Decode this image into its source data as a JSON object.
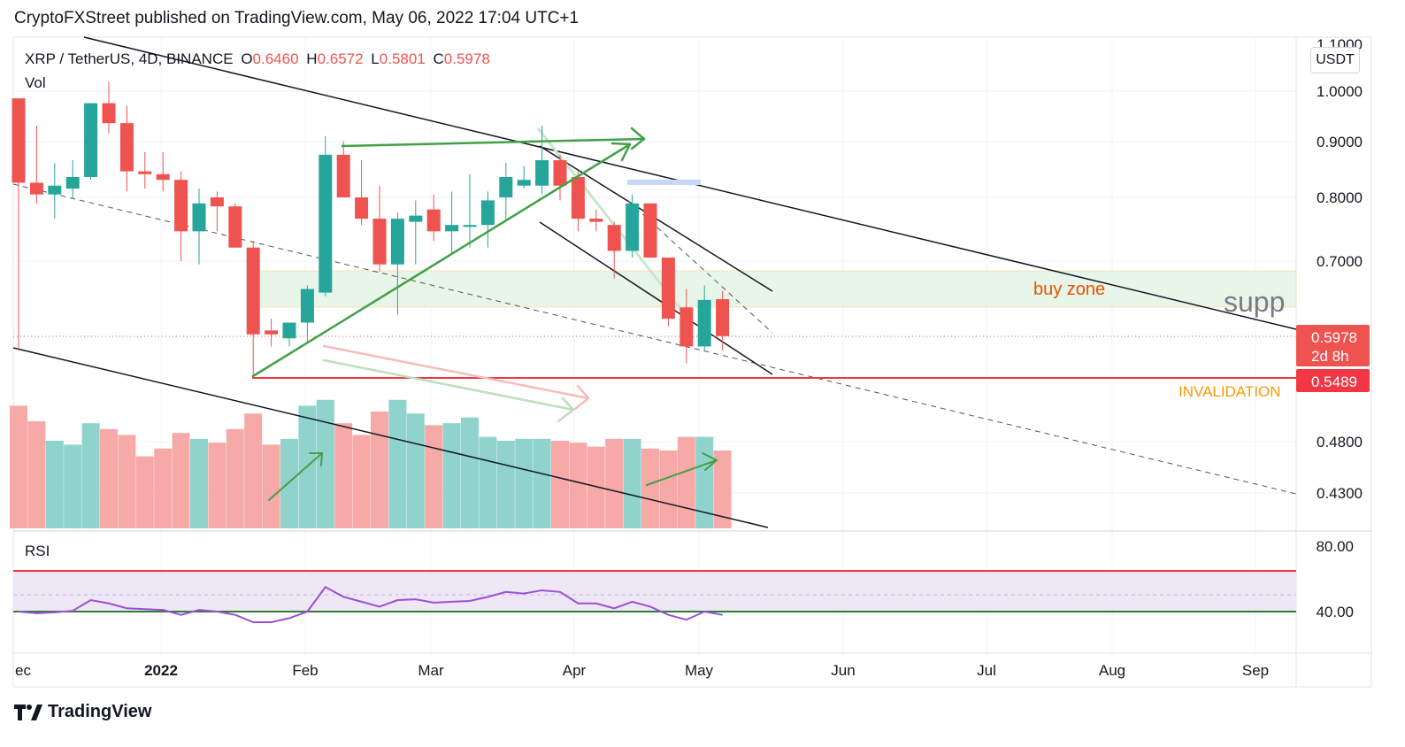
{
  "header": "CryptoFXStreet published on TradingView.com, May 06, 2022 17:04 UTC+1",
  "legend": {
    "symbol": "XRP / TetherUS, 4D, BINANCE",
    "o_label": "O",
    "o": "0.6460",
    "h_label": "H",
    "h": "0.6572",
    "l_label": "L",
    "l": "0.5801",
    "c_label": "C",
    "c": "0.5978",
    "vol": "Vol"
  },
  "currency_button": "USDT",
  "rsi_label": "RSI",
  "footer": "TradingView",
  "annotations": {
    "buy_zone": "buy zone",
    "support": "supp",
    "invalidation": "INVALIDATION"
  },
  "price_tags": {
    "last": "0.5978",
    "countdown": "2d 8h",
    "invalidation": "0.5489"
  },
  "colors": {
    "up": "#26a69a",
    "down": "#ef5350",
    "up_vol": "#8fd3cc",
    "down_vol": "#f7a9a7",
    "invalidation": "#f23645",
    "buy_zone_fill": "#e8f5e9",
    "rsi_line": "#9c4fd6",
    "rsi_band": "#ede7f6",
    "arrow_green": "#43a047",
    "buy_zone_text": "#e65100",
    "invalidation_text": "#ff9800"
  },
  "chart_data": {
    "type": "candlestick",
    "title": "XRP / TetherUS, 4D, BINANCE",
    "price_axis_ticks": [
      "1.1000",
      "1.0000",
      "0.9000",
      "0.8000",
      "0.7000",
      "0.4800",
      "0.4300"
    ],
    "price_scale": "log",
    "rsi_axis_ticks": [
      "80.00",
      "40.00"
    ],
    "x_axis_ticks": [
      "ec",
      "2022",
      "Feb",
      "Mar",
      "Apr",
      "May",
      "Jun",
      "Jul",
      "Aug",
      "Sep"
    ],
    "candles": [
      {
        "o": 0.985,
        "h": 0.985,
        "l": 0.58,
        "c": 0.825
      },
      {
        "o": 0.825,
        "h": 0.93,
        "l": 0.79,
        "c": 0.805
      },
      {
        "o": 0.805,
        "h": 0.86,
        "l": 0.765,
        "c": 0.82
      },
      {
        "o": 0.815,
        "h": 0.865,
        "l": 0.8,
        "c": 0.835
      },
      {
        "o": 0.835,
        "h": 0.975,
        "l": 0.83,
        "c": 0.975
      },
      {
        "o": 0.975,
        "h": 1.02,
        "l": 0.915,
        "c": 0.935
      },
      {
        "o": 0.935,
        "h": 0.97,
        "l": 0.81,
        "c": 0.845
      },
      {
        "o": 0.845,
        "h": 0.88,
        "l": 0.815,
        "c": 0.84
      },
      {
        "o": 0.84,
        "h": 0.88,
        "l": 0.81,
        "c": 0.83
      },
      {
        "o": 0.83,
        "h": 0.845,
        "l": 0.7,
        "c": 0.745
      },
      {
        "o": 0.745,
        "h": 0.815,
        "l": 0.695,
        "c": 0.79
      },
      {
        "o": 0.8,
        "h": 0.81,
        "l": 0.745,
        "c": 0.785
      },
      {
        "o": 0.785,
        "h": 0.79,
        "l": 0.72,
        "c": 0.72
      },
      {
        "o": 0.72,
        "h": 0.73,
        "l": 0.55,
        "c": 0.6
      },
      {
        "o": 0.605,
        "h": 0.62,
        "l": 0.585,
        "c": 0.6
      },
      {
        "o": 0.595,
        "h": 0.615,
        "l": 0.585,
        "c": 0.615
      },
      {
        "o": 0.615,
        "h": 0.665,
        "l": 0.59,
        "c": 0.66
      },
      {
        "o": 0.655,
        "h": 0.91,
        "l": 0.65,
        "c": 0.875
      },
      {
        "o": 0.875,
        "h": 0.9,
        "l": 0.8,
        "c": 0.8
      },
      {
        "o": 0.8,
        "h": 0.865,
        "l": 0.755,
        "c": 0.765
      },
      {
        "o": 0.765,
        "h": 0.82,
        "l": 0.685,
        "c": 0.695
      },
      {
        "o": 0.695,
        "h": 0.775,
        "l": 0.625,
        "c": 0.765
      },
      {
        "o": 0.76,
        "h": 0.795,
        "l": 0.695,
        "c": 0.77
      },
      {
        "o": 0.78,
        "h": 0.805,
        "l": 0.73,
        "c": 0.745
      },
      {
        "o": 0.745,
        "h": 0.81,
        "l": 0.71,
        "c": 0.755
      },
      {
        "o": 0.752,
        "h": 0.84,
        "l": 0.72,
        "c": 0.755
      },
      {
        "o": 0.755,
        "h": 0.81,
        "l": 0.72,
        "c": 0.795
      },
      {
        "o": 0.8,
        "h": 0.86,
        "l": 0.76,
        "c": 0.835
      },
      {
        "o": 0.82,
        "h": 0.855,
        "l": 0.815,
        "c": 0.83
      },
      {
        "o": 0.82,
        "h": 0.93,
        "l": 0.805,
        "c": 0.865
      },
      {
        "o": 0.865,
        "h": 0.875,
        "l": 0.795,
        "c": 0.82
      },
      {
        "o": 0.835,
        "h": 0.845,
        "l": 0.745,
        "c": 0.765
      },
      {
        "o": 0.765,
        "h": 0.78,
        "l": 0.745,
        "c": 0.76
      },
      {
        "o": 0.755,
        "h": 0.76,
        "l": 0.675,
        "c": 0.715
      },
      {
        "o": 0.715,
        "h": 0.805,
        "l": 0.705,
        "c": 0.79
      },
      {
        "o": 0.79,
        "h": 0.79,
        "l": 0.705,
        "c": 0.705
      },
      {
        "o": 0.705,
        "h": 0.705,
        "l": 0.61,
        "c": 0.62
      },
      {
        "o": 0.635,
        "h": 0.66,
        "l": 0.565,
        "c": 0.585
      },
      {
        "o": 0.585,
        "h": 0.665,
        "l": 0.58,
        "c": 0.645
      },
      {
        "o": 0.646,
        "h": 0.6572,
        "l": 0.5801,
        "c": 0.5978
      }
    ],
    "volume_relative": [
      0.63,
      0.55,
      0.45,
      0.43,
      0.54,
      0.51,
      0.48,
      0.37,
      0.41,
      0.49,
      0.46,
      0.44,
      0.51,
      0.59,
      0.43,
      0.46,
      0.63,
      0.66,
      0.54,
      0.48,
      0.6,
      0.66,
      0.59,
      0.53,
      0.54,
      0.57,
      0.47,
      0.45,
      0.46,
      0.46,
      0.45,
      0.44,
      0.42,
      0.46,
      0.46,
      0.41,
      0.4,
      0.47,
      0.47,
      0.4
    ],
    "rsi": [
      40,
      39,
      39.5,
      40.5,
      47,
      45,
      42,
      41.5,
      41,
      38,
      41,
      40,
      38,
      33.5,
      33.5,
      36,
      40,
      55,
      49,
      46,
      43,
      47,
      47.5,
      45.5,
      46,
      46.5,
      49,
      52,
      51,
      53,
      52,
      45,
      45,
      42,
      46,
      43,
      38,
      35,
      40,
      38
    ],
    "horizontal_levels": {
      "invalidation": 0.5489,
      "last": 0.5978
    },
    "buy_zone": {
      "low": 0.635,
      "high": 0.69
    }
  }
}
